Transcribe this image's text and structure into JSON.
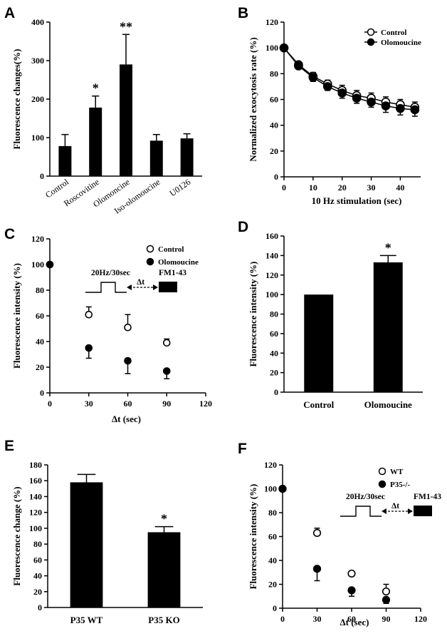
{
  "chart_data": [
    {
      "panel": "A",
      "type": "bar",
      "categories": [
        "Control",
        "Roscovitine",
        "Olomoncine",
        "Iso-olomoucine",
        "U0126"
      ],
      "values": [
        78,
        178,
        290,
        92,
        98
      ],
      "errors": [
        30,
        30,
        78,
        16,
        12
      ],
      "annotations": [
        "",
        "*",
        "**",
        "",
        ""
      ],
      "ylabel": "Fluorescence changes(%)",
      "xlabel": "",
      "ylim": [
        0,
        400
      ],
      "yticks": [
        "0",
        "100",
        "200",
        "300",
        "400"
      ]
    },
    {
      "panel": "B",
      "type": "line",
      "x": [
        0,
        5,
        10,
        15,
        20,
        25,
        30,
        35,
        40,
        45
      ],
      "series": [
        {
          "name": "Control",
          "marker": "open-circle",
          "values": [
            100,
            87,
            78,
            72,
            67,
            63,
            61,
            58,
            56,
            54
          ],
          "errors": [
            1,
            2,
            3,
            3,
            4,
            4,
            4,
            4,
            4,
            4
          ]
        },
        {
          "name": "Olomoucine",
          "marker": "filled-circle",
          "values": [
            100,
            86,
            77,
            70,
            65,
            61,
            58,
            55,
            53,
            52
          ],
          "errors": [
            1,
            2,
            3,
            3,
            4,
            4,
            4,
            5,
            5,
            5
          ]
        }
      ],
      "ylabel": "Normalized exocytosis rate (%)",
      "xlabel": "10 Hz stimulation (sec)",
      "xlim": [
        0,
        47
      ],
      "ylim": [
        0,
        120
      ],
      "xticks": [
        "0",
        "10",
        "20",
        "30",
        "40"
      ],
      "yticks": [
        "0",
        "20",
        "40",
        "60",
        "80",
        "100",
        "120"
      ],
      "legend": "top-right"
    },
    {
      "panel": "C",
      "type": "scatter",
      "x": [
        0,
        30,
        60,
        90
      ],
      "series": [
        {
          "name": "Control",
          "marker": "open-circle",
          "values": [
            100,
            61,
            51,
            39
          ],
          "errors": [
            0,
            6,
            10,
            3
          ]
        },
        {
          "name": "Olomoucine",
          "marker": "filled-circle",
          "values": [
            100,
            35,
            25,
            17
          ],
          "errors": [
            0,
            8,
            10,
            6
          ]
        }
      ],
      "ylabel": "Fluorescence intensity (%)",
      "xlabel": "Δt (sec)",
      "xlim": [
        0,
        120
      ],
      "ylim": [
        0,
        120
      ],
      "xticks": [
        "0",
        "30",
        "60",
        "90",
        "120"
      ],
      "yticks": [
        "0",
        "20",
        "40",
        "60",
        "80",
        "100",
        "120"
      ],
      "legend": "top-right",
      "protocol": {
        "stim": "20Hz/30sec",
        "delta": "Δt",
        "dye": "FM1-43"
      }
    },
    {
      "panel": "D",
      "type": "bar",
      "categories": [
        "Control",
        "Olomoucine"
      ],
      "values": [
        100,
        133
      ],
      "errors": [
        0,
        7
      ],
      "annotations": [
        "",
        "*"
      ],
      "ylabel": "Fluorescence intensity (%)",
      "xlabel": "",
      "ylim": [
        0,
        160
      ],
      "yticks": [
        "0",
        "20",
        "40",
        "60",
        "80",
        "100",
        "120",
        "140",
        "160"
      ]
    },
    {
      "panel": "E",
      "type": "bar",
      "categories": [
        "P35 WT",
        "P35 KO"
      ],
      "values": [
        158,
        95
      ],
      "errors": [
        10,
        7
      ],
      "annotations": [
        "",
        "*"
      ],
      "ylabel": "Fluorescence change (%)",
      "xlabel": "",
      "ylim": [
        0,
        180
      ],
      "yticks": [
        "0",
        "20",
        "40",
        "60",
        "80",
        "100",
        "120",
        "140",
        "160",
        "180"
      ]
    },
    {
      "panel": "F",
      "type": "scatter",
      "x": [
        0,
        30,
        60,
        90
      ],
      "series": [
        {
          "name": "WT",
          "marker": "open-circle",
          "values": [
            100,
            63,
            29,
            14
          ],
          "errors": [
            0,
            4,
            2,
            6
          ]
        },
        {
          "name": "P35-/-",
          "marker": "filled-circle",
          "values": [
            100,
            33,
            15,
            7
          ],
          "errors": [
            0,
            10,
            5,
            3
          ]
        }
      ],
      "ylabel": "Fluorescence intensity (%)",
      "xlabel": "Δt (sec)",
      "xlim": [
        0,
        120
      ],
      "ylim": [
        0,
        120
      ],
      "xticks": [
        "0",
        "30",
        "60",
        "90",
        "120"
      ],
      "yticks": [
        "0",
        "20",
        "40",
        "60",
        "80",
        "100",
        "120"
      ],
      "legend": "top-right",
      "protocol": {
        "stim": "20Hz/30sec",
        "delta": "Δt",
        "dye": "FM1-43"
      }
    }
  ]
}
